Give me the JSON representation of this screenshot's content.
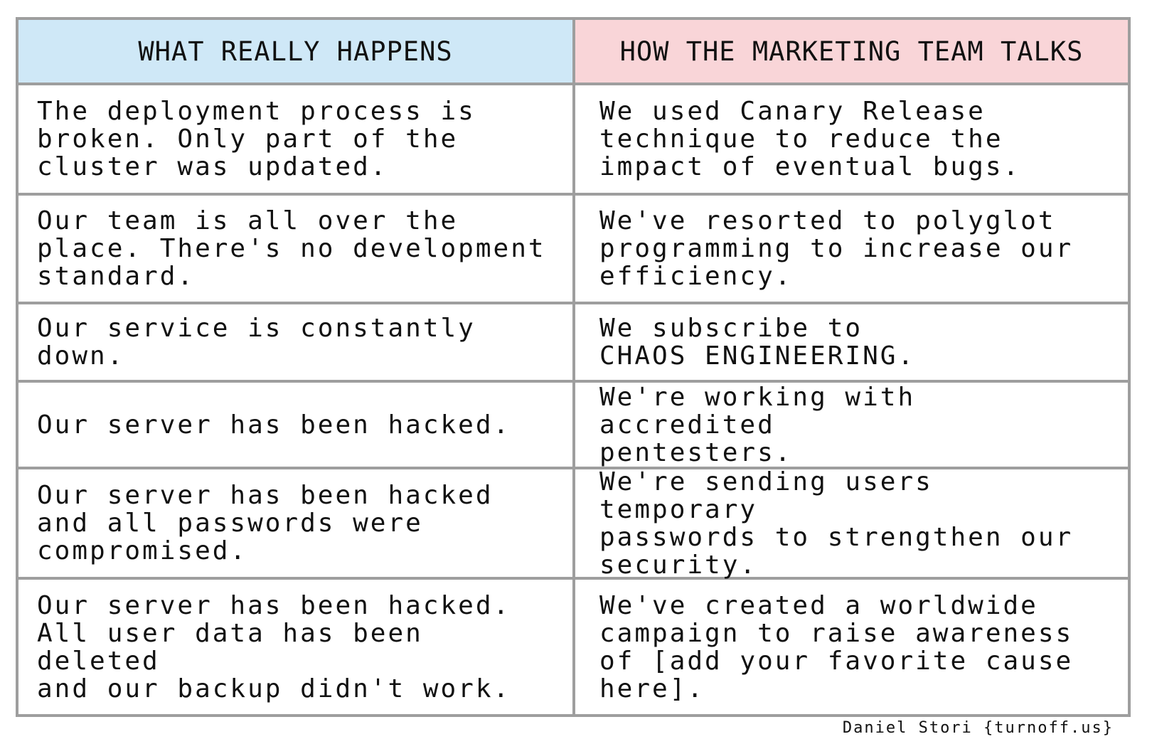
{
  "header": {
    "left": "WHAT REALLY HAPPENS",
    "right": "HOW THE MARKETING TEAM TALKS"
  },
  "rows": [
    {
      "left": "The deployment process is\nbroken. Only part of the\ncluster was updated.",
      "right": "We used Canary Release\ntechnique to reduce the\nimpact of eventual bugs."
    },
    {
      "left": "Our team is all over the\nplace. There's no development\nstandard.",
      "right": "We've resorted to polyglot\nprogramming to increase our\nefficiency."
    },
    {
      "left": "Our service is constantly down.",
      "right": "We subscribe to\nCHAOS ENGINEERING."
    },
    {
      "left": "Our server has been hacked.",
      "right": "We're working with accredited\npentesters."
    },
    {
      "left": "Our server has been hacked\nand all passwords were\ncompromised.",
      "right": "We're sending users temporary\npasswords to strengthen our\nsecurity."
    },
    {
      "left": "Our server has been hacked.\nAll user data has been deleted\nand our backup didn't work.",
      "right": "We've created a worldwide\ncampaign to raise awareness\nof [add your favorite cause\nhere]."
    }
  ],
  "credit": "Daniel Stori {turnoff.us}",
  "colors": {
    "left_header_bg": "#cfe8f7",
    "right_header_bg": "#f9d5d8",
    "grid_lines": "#9e9e9e"
  }
}
